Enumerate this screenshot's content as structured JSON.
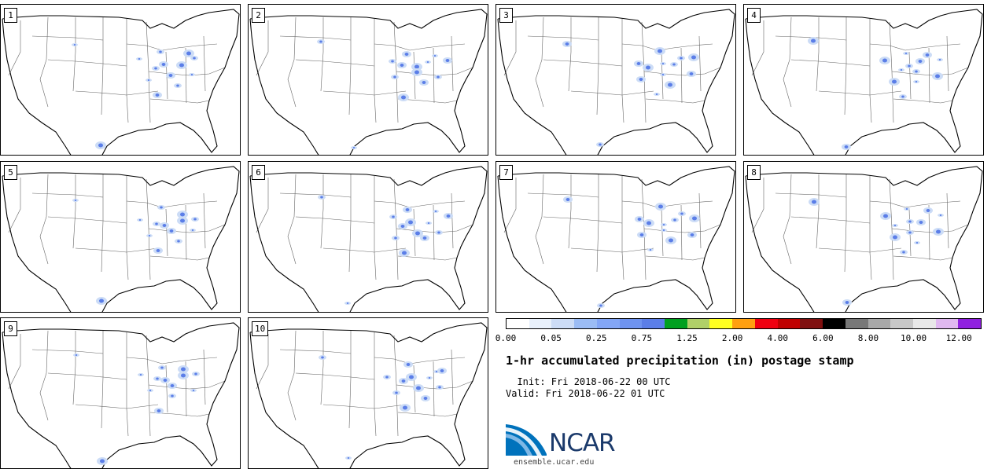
{
  "stamps": [
    {
      "label": "1"
    },
    {
      "label": "2"
    },
    {
      "label": "3"
    },
    {
      "label": "4"
    },
    {
      "label": "5"
    },
    {
      "label": "6"
    },
    {
      "label": "7"
    },
    {
      "label": "8"
    },
    {
      "label": "9"
    },
    {
      "label": "10"
    }
  ],
  "legend": {
    "colors": [
      "#ffffff",
      "#e8f0fb",
      "#ccdcf6",
      "#9bbcf5",
      "#83a6f6",
      "#6e93f0",
      "#5b7ee8",
      "#00a020",
      "#b0d068",
      "#ffff20",
      "#ffa010",
      "#f00010",
      "#c00000",
      "#801010",
      "#000000",
      "#787878",
      "#a8a8a8",
      "#c8c8c8",
      "#e8e8e8",
      "#e0b8f0",
      "#9020e0"
    ],
    "ticks": [
      "0.00",
      "0.05",
      "0.25",
      "0.75",
      "1.25",
      "2.00",
      "4.00",
      "6.00",
      "8.00",
      "10.00",
      "12.00"
    ]
  },
  "title": "1-hr accumulated precipitation (in) postage stamp",
  "init": "Init: Fri 2018-06-22 00 UTC",
  "valid": "Valid: Fri 2018-06-22 01 UTC",
  "logo_text": "NCAR",
  "site": "ensemble.ucar.edu",
  "colors": {
    "precip": "#5b7ee8",
    "precip_light": "#ccdcf6"
  }
}
